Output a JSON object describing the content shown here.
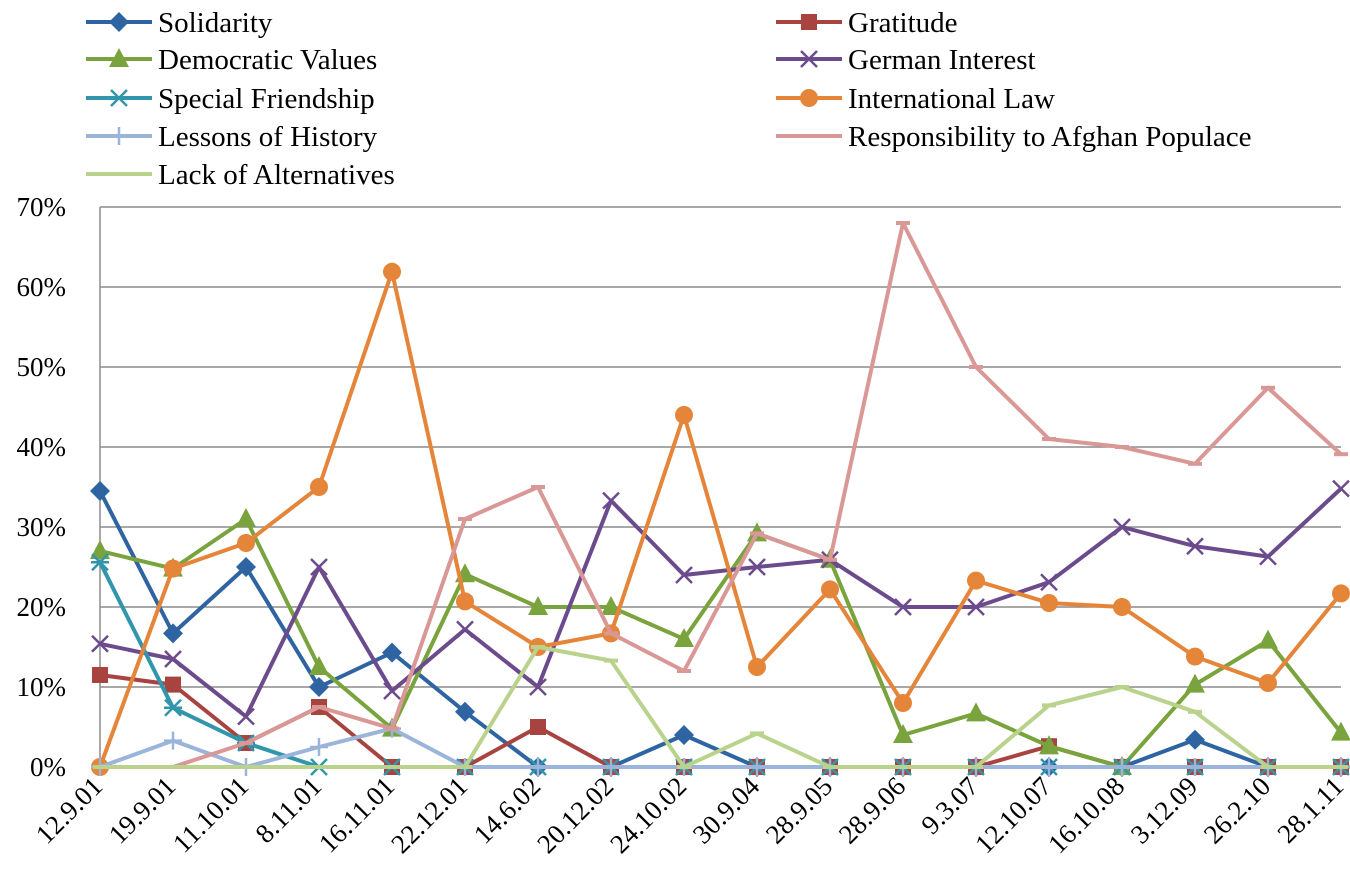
{
  "chart_data": {
    "type": "line",
    "title": "",
    "xlabel": "",
    "ylabel": "",
    "ylim": [
      0,
      70
    ],
    "y_unit": "%",
    "y_ticks": [
      "0%",
      "10%",
      "20%",
      "30%",
      "40%",
      "50%",
      "60%",
      "70%"
    ],
    "grid": "horizontal",
    "legend_position": "top",
    "categories": [
      "12.9.01",
      "19.9.01",
      "11.10.01",
      "8.11.01",
      "16.11.01",
      "22.12.01",
      "14.6.02",
      "20.12.02",
      "24.10.02",
      "30.9.04",
      "28.9.05",
      "28.9.06",
      "9.3.07",
      "12.10.07",
      "16.10.08",
      "3.12.09",
      "26.2.10",
      "28.1.11"
    ],
    "series": [
      {
        "name": "Solidarity",
        "color": "#2e64a2",
        "marker": "diamond",
        "values": [
          34.5,
          16.7,
          25.0,
          10.0,
          14.3,
          6.9,
          0,
          0,
          4.0,
          0,
          0,
          0,
          0,
          0,
          0,
          3.4,
          0,
          0
        ]
      },
      {
        "name": "Gratitude",
        "color": "#a84440",
        "marker": "square",
        "values": [
          11.5,
          10.3,
          3.0,
          7.5,
          0,
          0,
          5.0,
          0,
          0,
          0,
          0,
          0,
          0,
          2.6,
          0,
          0,
          0,
          0
        ]
      },
      {
        "name": "Democratic Values",
        "color": "#79a33c",
        "marker": "triangle",
        "values": [
          27.0,
          24.8,
          31.0,
          12.5,
          4.8,
          24.1,
          20.0,
          20.0,
          16.0,
          29.2,
          25.9,
          4.0,
          6.7,
          2.6,
          0,
          10.3,
          15.8,
          4.3
        ]
      },
      {
        "name": "German Interest",
        "color": "#6c4b8d",
        "marker": "x",
        "values": [
          15.4,
          13.5,
          6.3,
          25.0,
          9.5,
          17.2,
          10.0,
          33.3,
          24.0,
          25.0,
          25.9,
          20.0,
          20.0,
          23.1,
          30.0,
          27.6,
          26.3,
          34.8
        ]
      },
      {
        "name": "Special Friendship",
        "color": "#3196ac",
        "marker": "star",
        "values": [
          25.6,
          7.4,
          3.0,
          0,
          0,
          0,
          0,
          0,
          0,
          0,
          0,
          0,
          0,
          0,
          0,
          0,
          0,
          0
        ]
      },
      {
        "name": "International Law",
        "color": "#e5853a",
        "marker": "circle",
        "values": [
          0,
          24.8,
          28.0,
          35.0,
          61.9,
          20.7,
          15.0,
          16.7,
          44.0,
          12.5,
          22.2,
          8.0,
          23.3,
          20.5,
          20.0,
          13.8,
          10.5,
          21.7
        ]
      },
      {
        "name": "Lessons of History",
        "color": "#9bb4d9",
        "marker": "plus",
        "values": [
          0,
          3.3,
          0,
          2.5,
          4.8,
          0,
          0,
          0,
          0,
          0,
          0,
          0,
          0,
          0,
          0,
          0,
          0,
          0
        ]
      },
      {
        "name": "Responsibility to Afghan Populace",
        "color": "#d99896",
        "marker": "dash",
        "values": [
          0,
          0,
          3.0,
          7.5,
          4.8,
          31.0,
          35.0,
          16.7,
          12.0,
          29.2,
          25.9,
          68.0,
          50.0,
          41.0,
          40.0,
          37.9,
          47.4,
          39.1
        ]
      },
      {
        "name": "Lack of Alternatives",
        "color": "#b9d38d",
        "marker": "dash",
        "values": [
          0,
          0,
          0,
          0,
          0,
          0,
          15.0,
          13.3,
          0,
          4.2,
          0,
          0,
          0,
          7.7,
          10.0,
          6.9,
          0,
          0
        ]
      }
    ]
  }
}
